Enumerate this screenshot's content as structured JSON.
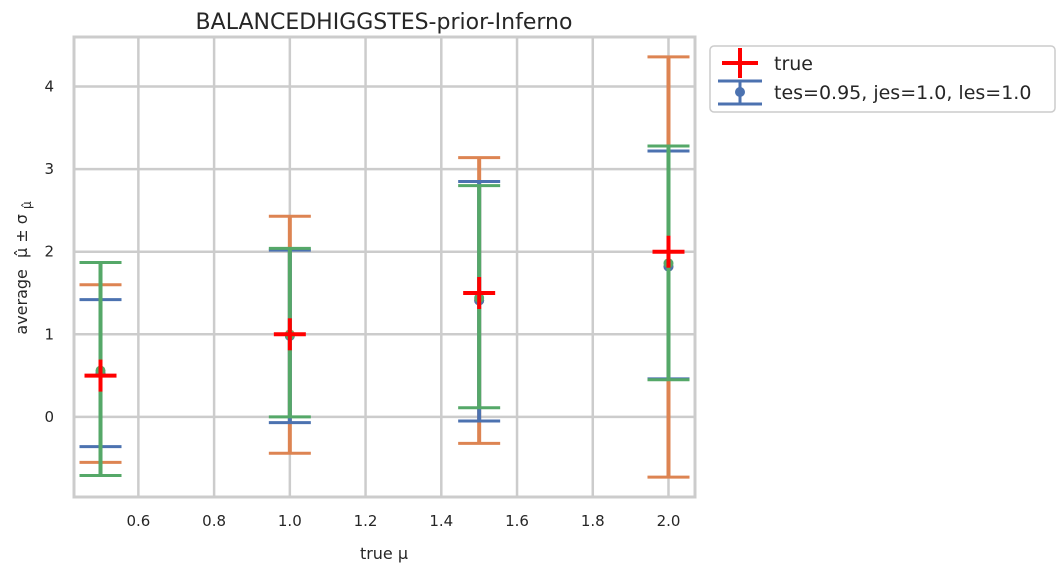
{
  "chart_data": {
    "type": "scatter",
    "title": "BALANCEDHIGGSTES-prior-Inferno",
    "xlabel": "true μ",
    "ylabel_text": "average",
    "ylabel_math": "μ̂ ± σ",
    "ylabel_sub": "μ̂",
    "xlim": [
      0.43,
      2.07
    ],
    "ylim": [
      -0.97,
      4.6
    ],
    "xticks": [
      "0.6",
      "0.8",
      "1.0",
      "1.2",
      "1.4",
      "1.6",
      "1.8",
      "2.0"
    ],
    "yticks": [
      "0",
      "1",
      "2",
      "3",
      "4"
    ],
    "grid": true,
    "legend_position": "outside-top-right",
    "legend": [
      {
        "label": "true",
        "marker": "plus",
        "color": "#ff0000"
      },
      {
        "label": "tes=0.95, jes=1.0, les=1.0",
        "marker": "errorbar-point",
        "color": "#4c72b0"
      }
    ],
    "true_points": {
      "name": "true",
      "color": "#ff0000",
      "x": [
        0.5,
        1.0,
        1.5,
        2.0
      ],
      "y": [
        0.5,
        1.0,
        1.5,
        2.0
      ]
    },
    "errorbars": [
      {
        "color": "#dd8452",
        "x": [
          0.5,
          1.0,
          1.5,
          2.0
        ],
        "y": [
          0.53,
          1.0,
          1.41,
          1.82
        ],
        "low": [
          -0.55,
          -0.44,
          -0.32,
          -0.73
        ],
        "high": [
          1.6,
          2.43,
          3.14,
          4.36
        ]
      },
      {
        "color": "#4c72b0",
        "x": [
          0.5,
          1.0,
          1.5,
          2.0
        ],
        "y": [
          0.53,
          0.98,
          1.41,
          1.82
        ],
        "low": [
          -0.36,
          -0.07,
          -0.05,
          0.46
        ],
        "high": [
          1.42,
          2.02,
          2.85,
          3.22
        ]
      },
      {
        "color": "#55a868",
        "x": [
          0.5,
          1.0,
          1.5,
          2.0
        ],
        "y": [
          0.56,
          0.99,
          1.44,
          1.86
        ],
        "low": [
          -0.71,
          -0.0,
          0.11,
          0.45
        ],
        "high": [
          1.87,
          2.04,
          2.8,
          3.28
        ]
      }
    ]
  }
}
